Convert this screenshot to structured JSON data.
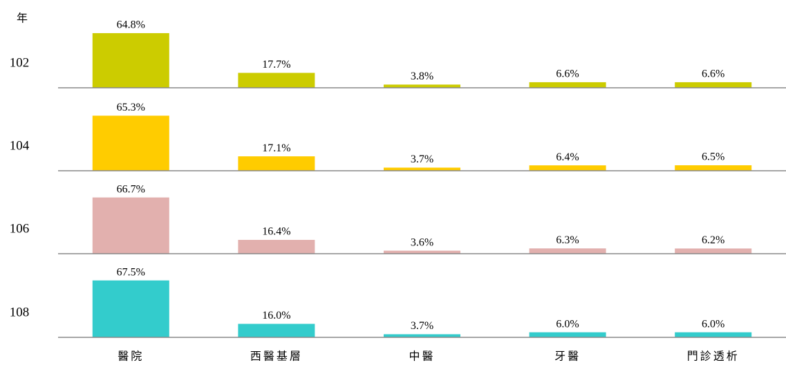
{
  "chart_data": {
    "type": "bar",
    "y_label": "年",
    "categories": [
      "醫院",
      "西醫基層",
      "中醫",
      "牙醫",
      "門診透析"
    ],
    "series": [
      {
        "name": "102",
        "color": "#cccc00",
        "values": [
          64.8,
          17.7,
          3.8,
          6.6,
          6.6
        ],
        "value_labels": [
          "64.8%",
          "17.7%",
          "3.8%",
          "6.6%",
          "6.6%"
        ]
      },
      {
        "name": "104",
        "color": "#ffcc00",
        "values": [
          65.3,
          17.1,
          3.7,
          6.4,
          6.5
        ],
        "value_labels": [
          "65.3%",
          "17.1%",
          "3.7%",
          "6.4%",
          "6.5%"
        ]
      },
      {
        "name": "106",
        "color": "#e2b0ae",
        "values": [
          66.7,
          16.4,
          3.6,
          6.3,
          6.2
        ],
        "value_labels": [
          "66.7%",
          "16.4%",
          "3.6%",
          "6.3%",
          "6.2%"
        ]
      },
      {
        "name": "108",
        "color": "#33cccc",
        "values": [
          67.5,
          16.0,
          3.7,
          6.0,
          6.0
        ],
        "value_labels": [
          "67.5%",
          "16.0%",
          "3.7%",
          "6.0%",
          "6.0%"
        ]
      }
    ]
  }
}
